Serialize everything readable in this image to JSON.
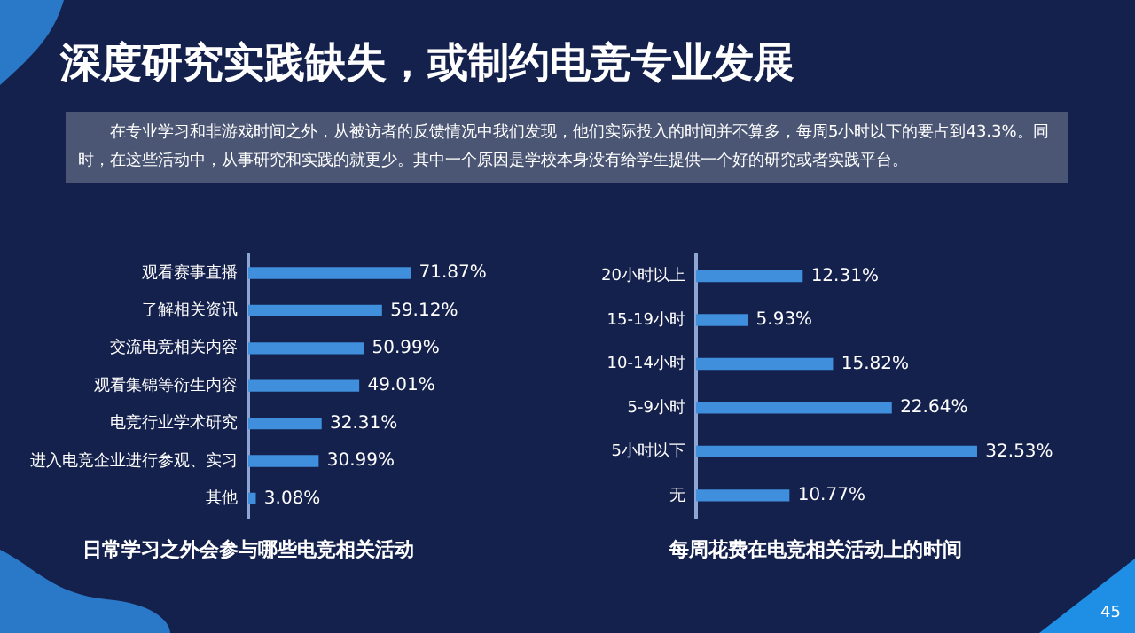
{
  "chart_data": [
    {
      "type": "other",
      "title": "深度研究实践缺失，或制约电竞专业发展",
      "subtitle": "在专业学习和非游戏时间之外，从被访者的反馈情况中我们发现，他们实际投入的时间并不算多，每周5小时以下的要占到43.3%。同时，在这些活动中，从事研究和实践的就更少。其中一个原因是学校本身没有给学生提供一个好的研究或者实践平台。",
      "annotations": [
        "45"
      ]
    },
    {
      "type": "bar",
      "orientation": "horizontal",
      "title": "日常学习之外会参与哪些电竞相关活动",
      "categories": [
        "观看赛事直播",
        "了解相关资讯",
        "交流电竞相关内容",
        "观看集锦等衍生内容",
        "电竞行业学术研究",
        "进入电竞企业进行参观、实习",
        "其他"
      ],
      "values": [
        71.87,
        59.12,
        50.99,
        49.01,
        32.31,
        30.99,
        3.08
      ],
      "value_labels": [
        "71.87%",
        "59.12%",
        "50.99%",
        "49.01%",
        "32.31%",
        "30.99%",
        "3.08%"
      ],
      "color": "#3f8fdc"
    },
    {
      "type": "bar",
      "orientation": "horizontal",
      "title": "每周花费在电竞相关活动上的时间",
      "categories": [
        "20小时以上",
        "15-19小时",
        "10-14小时",
        "5-9小时",
        "5小时以下",
        "无"
      ],
      "values": [
        12.31,
        5.93,
        15.82,
        22.64,
        32.53,
        10.77
      ],
      "value_labels": [
        "12.31%",
        "5.93%",
        "15.82%",
        "22.64%",
        "32.53%",
        "10.77%"
      ],
      "color": "#3f8fdc"
    }
  ]
}
